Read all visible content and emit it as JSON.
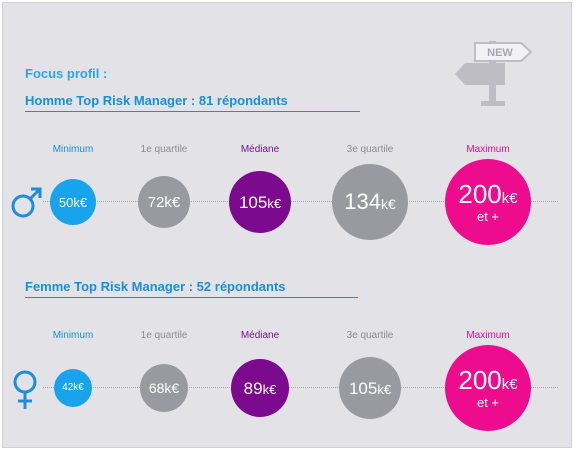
{
  "header": {
    "focus_label": "Focus profil :"
  },
  "sections": [
    {
      "title": "Homme Top Risk Manager : 81 répondants",
      "gender": "male",
      "stats": [
        {
          "label": "Minimum",
          "value": "50",
          "unit": "k€",
          "extra": ""
        },
        {
          "label": "1e quartile",
          "value": "72",
          "unit": "k€",
          "extra": ""
        },
        {
          "label": "Médiane",
          "value": "105",
          "unit": "k€",
          "extra": ""
        },
        {
          "label": "3e quartile",
          "value": "134",
          "unit": "k€",
          "extra": ""
        },
        {
          "label": "Maximum",
          "value": "200",
          "unit": "k€",
          "extra": "et +"
        }
      ]
    },
    {
      "title": "Femme Top Risk Manager : 52 répondants",
      "gender": "female",
      "stats": [
        {
          "label": "Minimum",
          "value": "42",
          "unit": "k€",
          "extra": ""
        },
        {
          "label": "1e quartile",
          "value": "68",
          "unit": "k€",
          "extra": ""
        },
        {
          "label": "Médiane",
          "value": "89",
          "unit": "k€",
          "extra": ""
        },
        {
          "label": "3e quartile",
          "value": "105",
          "unit": "k€",
          "extra": ""
        },
        {
          "label": "Maximum",
          "value": "200",
          "unit": "k€",
          "extra": "et +"
        }
      ]
    }
  ],
  "badge": {
    "text": "NEW",
    "icon": "signpost-icon"
  },
  "colors": {
    "minimum": "#18a3ec",
    "quartile": "#999aa0",
    "median": "#7c0a8e",
    "maximum": "#ee0c8e",
    "title": "#1a8ed8"
  }
}
